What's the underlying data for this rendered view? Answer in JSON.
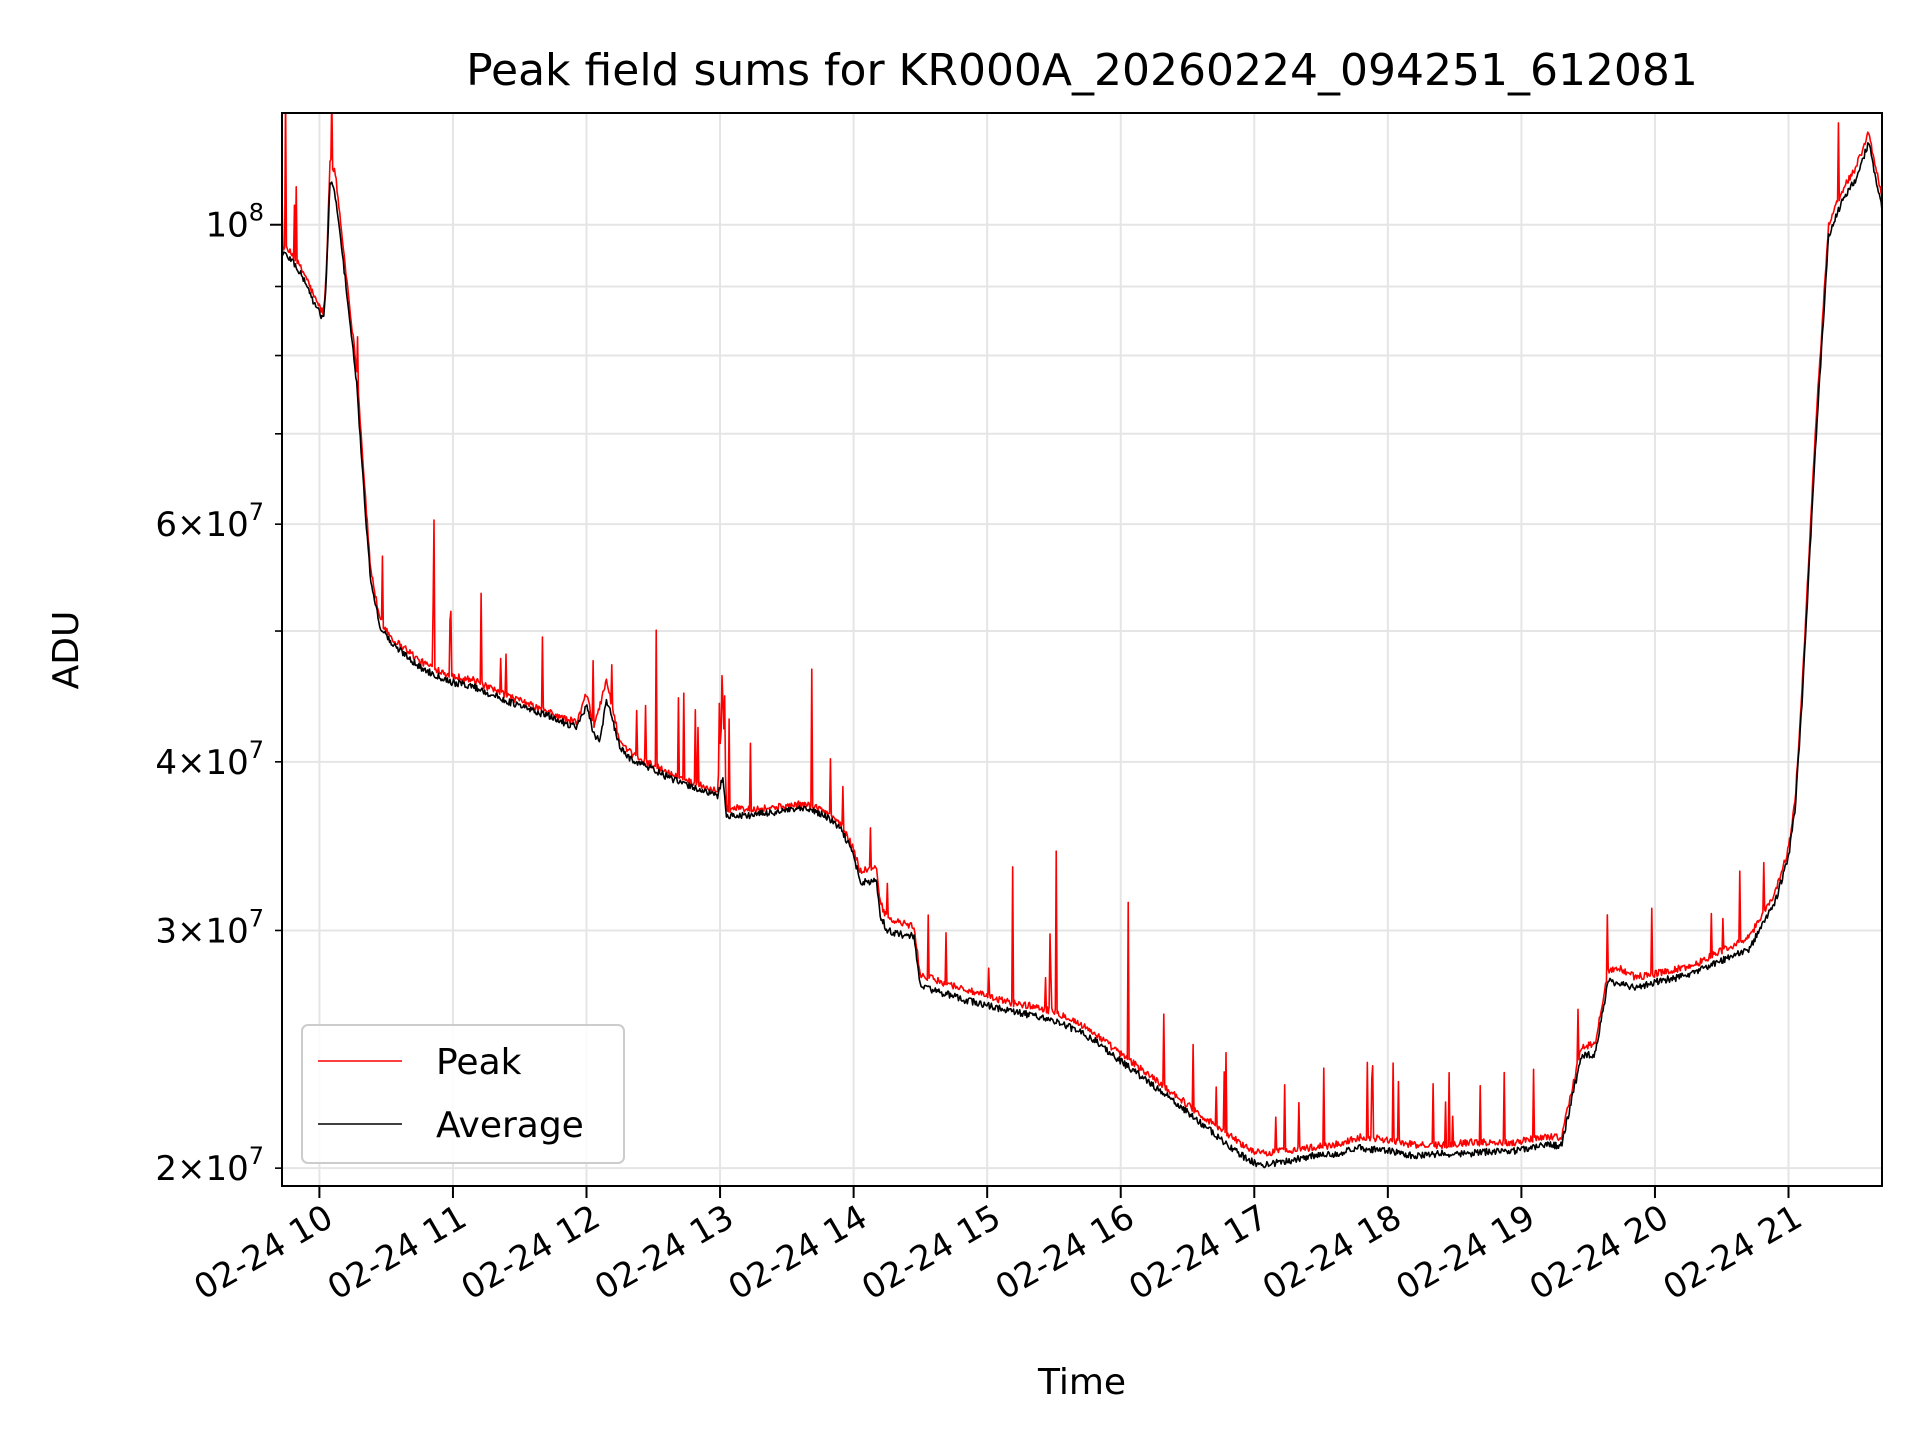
{
  "chart_data": {
    "type": "line",
    "title": "Peak field sums for KR000A_20260224_094251_612081",
    "xlabel": "Time",
    "ylabel": "ADU",
    "yscale": "log",
    "xlim": [
      9.72,
      21.7
    ],
    "ylim": [
      19400000,
      121000000
    ],
    "x_ticks": [
      {
        "value": 10,
        "label": "02-24 10"
      },
      {
        "value": 11,
        "label": "02-24 11"
      },
      {
        "value": 12,
        "label": "02-24 12"
      },
      {
        "value": 13,
        "label": "02-24 13"
      },
      {
        "value": 14,
        "label": "02-24 14"
      },
      {
        "value": 15,
        "label": "02-24 15"
      },
      {
        "value": 16,
        "label": "02-24 16"
      },
      {
        "value": 17,
        "label": "02-24 17"
      },
      {
        "value": 18,
        "label": "02-24 18"
      },
      {
        "value": 19,
        "label": "02-24 19"
      },
      {
        "value": 20,
        "label": "02-24 20"
      },
      {
        "value": 21,
        "label": "02-24 21"
      }
    ],
    "y_ticks_major": [
      {
        "value": 100000000,
        "base": "10",
        "exp": "8"
      }
    ],
    "y_ticks_minor": [
      {
        "value": 20000000,
        "mant": "2",
        "base": "10",
        "exp": "7"
      },
      {
        "value": 30000000,
        "mant": "3",
        "base": "10",
        "exp": "7"
      },
      {
        "value": 40000000,
        "mant": "4",
        "base": "10",
        "exp": "7"
      },
      {
        "value": 50000000
      },
      {
        "value": 60000000,
        "mant": "6",
        "base": "10",
        "exp": "7"
      },
      {
        "value": 70000000
      },
      {
        "value": 80000000
      },
      {
        "value": 90000000
      }
    ],
    "grid": true,
    "legend_position": "lower-left",
    "series": [
      {
        "name": "Peak",
        "color": "#ff0000",
        "x": [
          9.72,
          9.8,
          9.9,
          9.97,
          10.03,
          10.05,
          10.08,
          10.12,
          10.2,
          10.28,
          10.33,
          10.38,
          10.45,
          10.55,
          10.65,
          10.75,
          10.85,
          11.0,
          11.15,
          11.3,
          11.5,
          11.7,
          11.85,
          11.93,
          12.0,
          12.05,
          12.1,
          12.15,
          12.25,
          12.3,
          12.4,
          12.5,
          12.6,
          12.7,
          12.8,
          12.9,
          12.98,
          13.02,
          13.05,
          13.1,
          13.2,
          13.4,
          13.6,
          13.7,
          13.8,
          13.9,
          14.0,
          14.05,
          14.1,
          14.17,
          14.2,
          14.25,
          14.35,
          14.45,
          14.5,
          14.6,
          14.8,
          15.0,
          15.2,
          15.4,
          15.6,
          15.8,
          16.0,
          16.2,
          16.4,
          16.6,
          16.8,
          16.95,
          17.05,
          17.2,
          17.4,
          17.6,
          17.8,
          18.0,
          18.2,
          18.4,
          18.6,
          18.8,
          18.95,
          19.05,
          19.15,
          19.3,
          19.45,
          19.55,
          19.65,
          19.75,
          19.85,
          19.95,
          20.02,
          20.1,
          20.18,
          20.25,
          20.3,
          20.35,
          20.5,
          20.7,
          20.9,
          21.0,
          21.05,
          21.1,
          21.2,
          21.3,
          21.4,
          21.5,
          21.6,
          21.7
        ],
        "values": [
          96500000,
          95000000,
          91500000,
          88000000,
          86000000,
          91000000,
          112000000,
          109000000,
          92000000,
          78000000,
          66000000,
          56000000,
          51000000,
          49300000,
          48500000,
          47500000,
          47000000,
          46300000,
          46000000,
          45200000,
          44400000,
          43600000,
          43000000,
          42800000,
          45000000,
          42500000,
          44000000,
          46000000,
          41300000,
          40800000,
          40200000,
          39800000,
          39300000,
          38900000,
          38600000,
          38300000,
          38000000,
          44500000,
          36700000,
          37000000,
          36900000,
          37000000,
          37200000,
          37100000,
          36700000,
          36000000,
          34500000,
          33200000,
          33300000,
          33300000,
          31500000,
          30600000,
          30400000,
          30200000,
          27800000,
          27600000,
          27200000,
          26800000,
          26500000,
          26300000,
          25900000,
          25200000,
          24300000,
          23500000,
          22700000,
          21900000,
          21200000,
          20700000,
          20500000,
          20600000,
          20700000,
          20800000,
          21100000,
          21000000,
          20800000,
          20800000,
          20900000,
          20900000,
          20900000,
          21000000,
          21100000,
          21100000,
          24600000,
          24700000,
          28000000,
          28100000,
          27700000,
          27800000,
          27900000,
          28000000,
          28100000,
          28200000,
          28300000,
          28500000,
          29000000,
          29600000,
          32000000,
          34500000,
          37500000,
          45000000,
          70000000,
          100000000,
          106000000,
          110000000,
          117000000,
          105000000
        ]
      },
      {
        "name": "Average",
        "color": "#000000",
        "x": [
          9.72,
          9.8,
          9.9,
          9.97,
          10.03,
          10.05,
          10.08,
          10.12,
          10.2,
          10.28,
          10.33,
          10.38,
          10.45,
          10.55,
          10.65,
          10.75,
          10.85,
          11.0,
          11.15,
          11.3,
          11.5,
          11.7,
          11.85,
          11.93,
          12.0,
          12.05,
          12.1,
          12.15,
          12.25,
          12.3,
          12.4,
          12.5,
          12.6,
          12.7,
          12.8,
          12.9,
          12.98,
          13.02,
          13.05,
          13.1,
          13.2,
          13.4,
          13.6,
          13.7,
          13.8,
          13.9,
          14.0,
          14.05,
          14.1,
          14.17,
          14.2,
          14.25,
          14.35,
          14.45,
          14.5,
          14.6,
          14.8,
          15.0,
          15.2,
          15.4,
          15.6,
          15.8,
          16.0,
          16.2,
          16.4,
          16.6,
          16.8,
          16.95,
          17.05,
          17.2,
          17.4,
          17.6,
          17.8,
          18.0,
          18.2,
          18.4,
          18.6,
          18.8,
          18.95,
          19.05,
          19.15,
          19.3,
          19.45,
          19.55,
          19.65,
          19.75,
          19.85,
          19.95,
          20.02,
          20.1,
          20.18,
          20.25,
          20.3,
          20.35,
          20.5,
          20.7,
          20.9,
          21.0,
          21.05,
          21.1,
          21.2,
          21.3,
          21.4,
          21.5,
          21.6,
          21.7
        ],
        "values": [
          95500000,
          94000000,
          90500000,
          87000000,
          85200000,
          90000000,
          108000000,
          105000000,
          90000000,
          76000000,
          64000000,
          55000000,
          50500000,
          48800000,
          48000000,
          47000000,
          46500000,
          45800000,
          45500000,
          44800000,
          44000000,
          43300000,
          42700000,
          42500000,
          44000000,
          42000000,
          41500000,
          44500000,
          41000000,
          40400000,
          39900000,
          39500000,
          39000000,
          38600000,
          38300000,
          38000000,
          37700000,
          39000000,
          36400000,
          36500000,
          36500000,
          36700000,
          36900000,
          36800000,
          36400000,
          35700000,
          34200000,
          32500000,
          32600000,
          32600000,
          30800000,
          30000000,
          29800000,
          29700000,
          27300000,
          27100000,
          26700000,
          26400000,
          26100000,
          25900000,
          25500000,
          24900000,
          24000000,
          23200000,
          22400000,
          21600000,
          20800000,
          20300000,
          20100000,
          20200000,
          20400000,
          20500000,
          20700000,
          20600000,
          20400000,
          20500000,
          20500000,
          20600000,
          20600000,
          20700000,
          20800000,
          20800000,
          24200000,
          24300000,
          27500000,
          27400000,
          27200000,
          27400000,
          27500000,
          27600000,
          27700000,
          27800000,
          27900000,
          28100000,
          28500000,
          29000000,
          31500000,
          34000000,
          37000000,
          44000000,
          68000000,
          98000000,
          104000000,
          108000000,
          115000000,
          103000000
        ]
      }
    ]
  }
}
